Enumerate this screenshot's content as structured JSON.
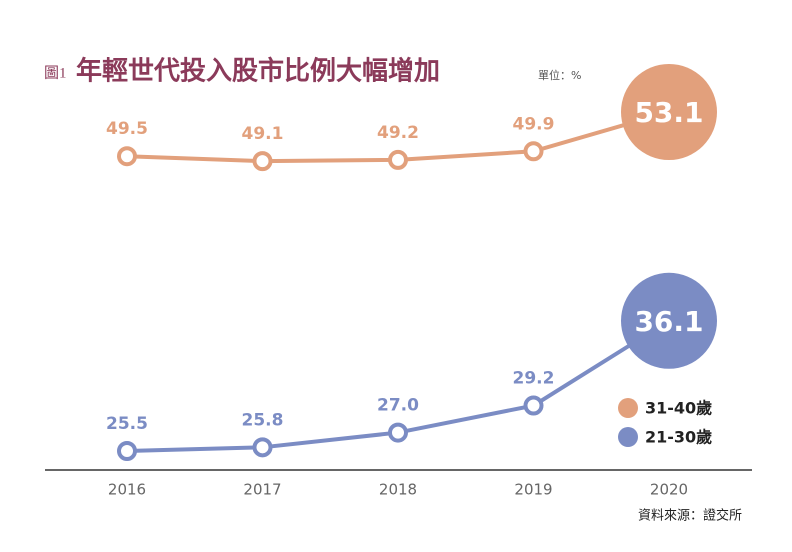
{
  "chart_data": {
    "type": "line",
    "title_prefix": "圖1",
    "title": "年輕世代投入股市比例大幅增加",
    "unit": "單位：%",
    "source": "資料來源：證交所",
    "categories": [
      "2016",
      "2017",
      "2018",
      "2019",
      "2020"
    ],
    "series": [
      {
        "name": "31-40歲",
        "color": "#e2a07c",
        "values": [
          49.5,
          49.1,
          49.2,
          49.9,
          53.1
        ],
        "value_labels": [
          "49.5",
          "49.1",
          "49.2",
          "49.9",
          "53.1"
        ]
      },
      {
        "name": "21-30歲",
        "color": "#7b8cc4",
        "values": [
          25.5,
          25.8,
          27.0,
          29.2,
          36.1
        ],
        "value_labels": [
          "25.5",
          "25.8",
          "27.0",
          "29.2",
          "36.1"
        ]
      }
    ]
  }
}
